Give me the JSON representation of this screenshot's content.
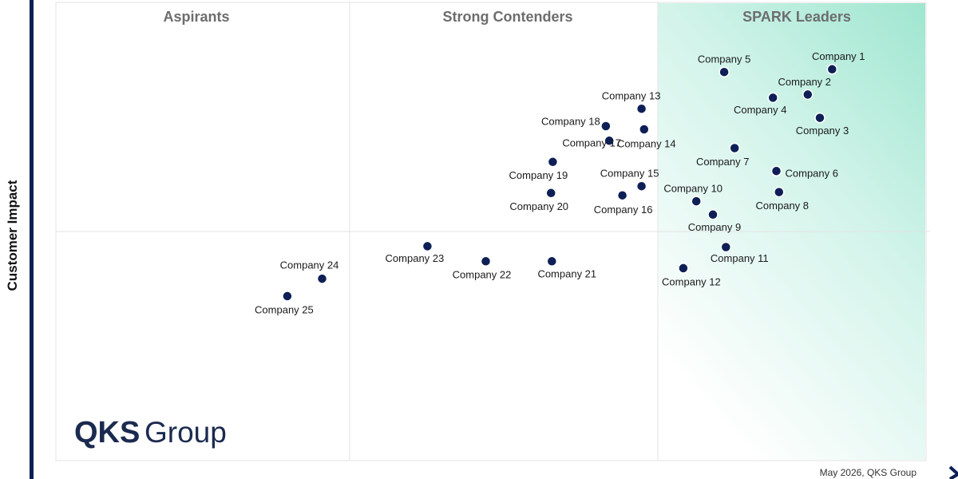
{
  "chart_data": {
    "type": "scatter",
    "ylabel": "Customer Impact",
    "xlabel": "",
    "xlim": [
      0,
      100
    ],
    "ylim": [
      0,
      100
    ],
    "grid": false,
    "quadrants": [
      {
        "label": "Aspirants"
      },
      {
        "label": "Strong Contenders"
      },
      {
        "label": "SPARK Leaders",
        "color": "#9fe6cf"
      }
    ],
    "points": [
      {
        "name": "Company 1",
        "x": 89.2,
        "y": 85.4
      },
      {
        "name": "Company 2",
        "x": 86.4,
        "y": 79.9
      },
      {
        "name": "Company 3",
        "x": 87.8,
        "y": 74.8
      },
      {
        "name": "Company 4",
        "x": 82.4,
        "y": 79.2
      },
      {
        "name": "Company 5",
        "x": 76.8,
        "y": 84.8
      },
      {
        "name": "Company 6",
        "x": 82.8,
        "y": 63.2
      },
      {
        "name": "Company 7",
        "x": 78.0,
        "y": 68.2
      },
      {
        "name": "Company 8",
        "x": 83.1,
        "y": 58.6
      },
      {
        "name": "Company 9",
        "x": 75.5,
        "y": 53.7
      },
      {
        "name": "Company 10",
        "x": 73.6,
        "y": 56.6
      },
      {
        "name": "Company 11",
        "x": 77.0,
        "y": 46.6
      },
      {
        "name": "Company 12",
        "x": 72.1,
        "y": 42.0
      },
      {
        "name": "Company 13",
        "x": 67.3,
        "y": 76.8
      },
      {
        "name": "Company 14",
        "x": 67.6,
        "y": 72.3
      },
      {
        "name": "Company 15",
        "x": 67.3,
        "y": 59.9
      },
      {
        "name": "Company 16",
        "x": 65.1,
        "y": 57.9
      },
      {
        "name": "Company 17",
        "x": 63.6,
        "y": 69.8
      },
      {
        "name": "Company 18",
        "x": 63.2,
        "y": 73.0
      },
      {
        "name": "Company 19",
        "x": 57.1,
        "y": 65.2
      },
      {
        "name": "Company 20",
        "x": 56.9,
        "y": 58.4
      },
      {
        "name": "Company 21",
        "x": 57.0,
        "y": 43.5
      },
      {
        "name": "Company 22",
        "x": 49.4,
        "y": 43.5
      },
      {
        "name": "Company 23",
        "x": 42.7,
        "y": 46.8
      },
      {
        "name": "Company 24",
        "x": 30.6,
        "y": 39.7
      },
      {
        "name": "Company 25",
        "x": 26.6,
        "y": 35.9
      }
    ]
  },
  "branding": {
    "logo_qks": "QKS",
    "logo_group": "Group",
    "credit": "May 2026, QKS Group"
  }
}
